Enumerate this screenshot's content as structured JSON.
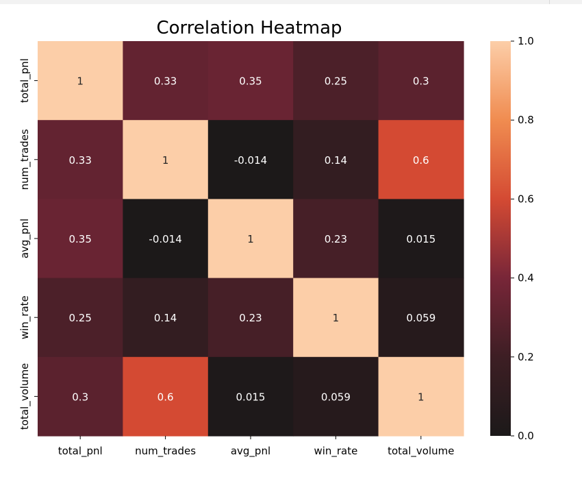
{
  "chart_data": {
    "type": "heatmap",
    "title": "Correlation Heatmap",
    "xlabel": "",
    "ylabel": "",
    "rows": [
      "total_pnl",
      "num_trades",
      "avg_pnl",
      "win_rate",
      "total_volume"
    ],
    "columns": [
      "total_pnl",
      "num_trades",
      "avg_pnl",
      "win_rate",
      "total_volume"
    ],
    "values": [
      [
        1,
        0.33,
        0.35,
        0.25,
        0.3
      ],
      [
        0.33,
        1,
        -0.014,
        0.14,
        0.6
      ],
      [
        0.35,
        -0.014,
        1,
        0.23,
        0.015
      ],
      [
        0.25,
        0.14,
        0.23,
        1,
        0.059
      ],
      [
        0.3,
        0.6,
        0.015,
        0.059,
        1
      ]
    ],
    "value_labels": [
      [
        "1",
        "0.33",
        "0.35",
        "0.25",
        "0.3"
      ],
      [
        "0.33",
        "1",
        "-0.014",
        "0.14",
        "0.6"
      ],
      [
        "0.35",
        "-0.014",
        "1",
        "0.23",
        "0.015"
      ],
      [
        "0.25",
        "0.14",
        "0.23",
        "1",
        "0.059"
      ],
      [
        "0.3",
        "0.6",
        "0.015",
        "0.059",
        "1"
      ]
    ],
    "colorbar": {
      "range": [
        0.0,
        1.0
      ],
      "ticks": [
        0.0,
        0.2,
        0.4,
        0.6,
        0.8,
        1.0
      ],
      "tick_labels": [
        "0.0",
        "0.2",
        "0.4",
        "0.6",
        "0.8",
        "1.0"
      ],
      "colormap": "rocket-like (dark to peach)"
    },
    "annotation_color": "#ffffff",
    "annotation_color_light_cells": "#262626"
  }
}
